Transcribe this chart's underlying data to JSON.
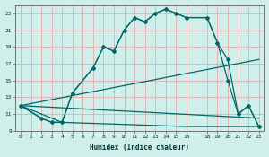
{
  "xlabel": "Humidex (Indice chaleur)",
  "bg_color": "#d0eeea",
  "grid_color": "#e8a0a0",
  "line_color": "#006868",
  "xlim": [
    -0.5,
    23.5
  ],
  "ylim": [
    9,
    24
  ],
  "yticks": [
    9,
    11,
    13,
    15,
    17,
    19,
    21,
    23
  ],
  "xticks": [
    0,
    1,
    2,
    3,
    4,
    5,
    6,
    7,
    8,
    9,
    10,
    11,
    12,
    13,
    14,
    15,
    16,
    18,
    19,
    20,
    21,
    22,
    23
  ],
  "curve1_x": [
    0,
    2,
    3,
    4,
    5,
    7,
    8,
    9,
    10,
    11,
    12,
    13,
    14,
    15,
    16,
    18,
    19,
    20,
    21,
    22,
    23
  ],
  "curve1_y": [
    12,
    10.5,
    10,
    10,
    13.5,
    16.5,
    19,
    18.5,
    21,
    22.5,
    22.0,
    23.0,
    23.5,
    23.0,
    22.5,
    22.5,
    19.5,
    17.5,
    11.0,
    12.0,
    9.5
  ],
  "curve2_x": [
    0,
    2,
    3,
    4,
    5,
    7,
    8,
    9,
    10,
    11,
    12,
    13,
    14,
    15,
    16,
    18,
    19,
    20,
    21,
    22,
    23
  ],
  "curve2_y": [
    12,
    10.5,
    10,
    10,
    13.5,
    16.5,
    19,
    18.5,
    21,
    22.5,
    22.0,
    23.0,
    23.5,
    23.0,
    22.5,
    22.5,
    19.5,
    15.0,
    11.0,
    12.0,
    9.5
  ],
  "line3_x": [
    0,
    4,
    16,
    19,
    20,
    21,
    22,
    23
  ],
  "line3_y": [
    12,
    10,
    9.5,
    9.5,
    9.5,
    9.5,
    9.5,
    9.5
  ],
  "line4_x": [
    0,
    23
  ],
  "line4_y": [
    12,
    17.5
  ],
  "line5_x": [
    0,
    23
  ],
  "line5_y": [
    12,
    10.5
  ]
}
